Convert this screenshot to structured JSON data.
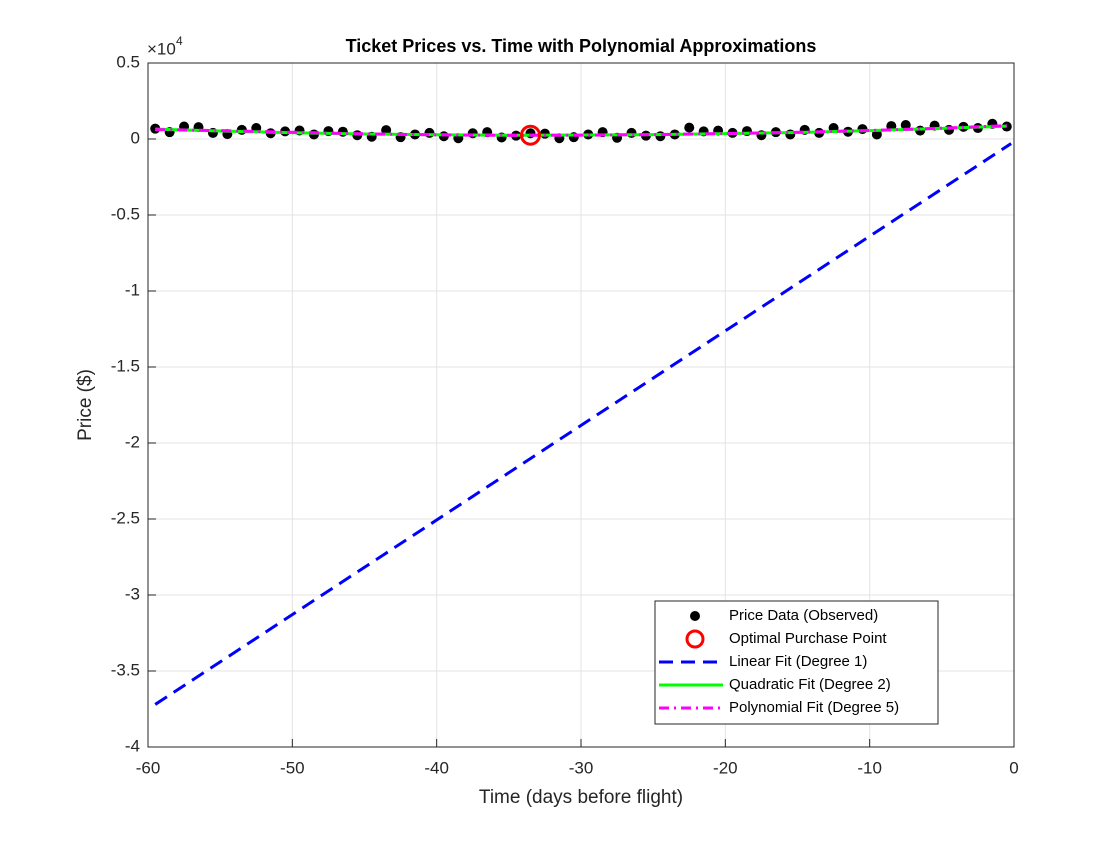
{
  "chart_data": {
    "type": "line",
    "title": "Ticket Prices vs. Time with Polynomial Approximations",
    "x_label": "Time (days before flight)",
    "y_label": "Price ($)",
    "y_multiplier": {
      "base": "×10",
      "exponent": "4"
    },
    "xlim": [
      -60,
      0
    ],
    "xticks": [
      -60,
      -50,
      -40,
      -30,
      -20,
      -10,
      0
    ],
    "ylim": [
      -4,
      0.5
    ],
    "yticks": [
      0.5,
      0,
      -0.5,
      -1,
      -1.5,
      -2,
      -2.5,
      -3,
      -3.5,
      -4
    ],
    "grid": true,
    "legend": "lower right",
    "series": [
      {
        "name": "Price Data (Observed)",
        "kind": "scatter",
        "color": "#000000",
        "x": [
          -59.5,
          -58.5,
          -57.5,
          -56.5,
          -55.5,
          -54.5,
          -53.5,
          -52.5,
          -51.5,
          -50.5,
          -49.5,
          -48.5,
          -47.5,
          -46.5,
          -45.5,
          -44.5,
          -43.5,
          -42.5,
          -41.5,
          -40.5,
          -39.5,
          -38.5,
          -37.5,
          -36.5,
          -35.5,
          -34.5,
          -33.5,
          -32.5,
          -31.5,
          -30.5,
          -29.5,
          -28.5,
          -27.5,
          -26.5,
          -25.5,
          -24.5,
          -23.5,
          -22.5,
          -21.5,
          -20.5,
          -19.5,
          -18.5,
          -17.5,
          -16.5,
          -15.5,
          -14.5,
          -13.5,
          -12.5,
          -11.5,
          -10.5,
          -9.5,
          -8.5,
          -7.5,
          -6.5,
          -5.5,
          -4.5,
          -3.5,
          -2.5,
          -1.5,
          -0.5
        ],
        "values": [
          0.068,
          0.045,
          0.082,
          0.078,
          0.04,
          0.032,
          0.06,
          0.072,
          0.038,
          0.05,
          0.056,
          0.03,
          0.052,
          0.048,
          0.025,
          0.015,
          0.058,
          0.012,
          0.03,
          0.04,
          0.018,
          0.005,
          0.038,
          0.045,
          0.01,
          0.022,
          0.038,
          0.035,
          0.005,
          0.012,
          0.03,
          0.045,
          0.008,
          0.04,
          0.022,
          0.018,
          0.03,
          0.075,
          0.05,
          0.055,
          0.04,
          0.052,
          0.025,
          0.045,
          0.03,
          0.06,
          0.04,
          0.072,
          0.048,
          0.065,
          0.03,
          0.085,
          0.092,
          0.055,
          0.088,
          0.06,
          0.08,
          0.072,
          0.1,
          0.082
        ]
      },
      {
        "name": "Optimal Purchase Point",
        "kind": "marker",
        "color": "#ff0000",
        "x": [
          -33.5
        ],
        "values": [
          0.025
        ]
      },
      {
        "name": "Linear Fit (Degree 1)",
        "kind": "line",
        "dash": "dash",
        "color": "#0000ff",
        "x": [
          -59.5,
          -0.2
        ],
        "values": [
          -3.72,
          -0.03
        ]
      },
      {
        "name": "Quadratic Fit (Degree 2)",
        "kind": "line",
        "dash": "solid",
        "color": "#00ff00",
        "x": [
          -59.5,
          -55,
          -50,
          -45,
          -40,
          -35,
          -30,
          -25,
          -20,
          -15,
          -10,
          -5,
          -0.5
        ],
        "values": [
          0.065,
          0.053,
          0.041,
          0.033,
          0.028,
          0.025,
          0.026,
          0.029,
          0.035,
          0.043,
          0.055,
          0.07,
          0.085
        ]
      },
      {
        "name": "Polynomial Fit (Degree 5)",
        "kind": "line",
        "dash": "dashdot",
        "color": "#ff00ff",
        "x": [
          -59.5,
          -55,
          -50,
          -45,
          -40,
          -35,
          -30,
          -25,
          -20,
          -15,
          -10,
          -5,
          -0.5
        ],
        "values": [
          0.062,
          0.055,
          0.044,
          0.034,
          0.027,
          0.024,
          0.025,
          0.029,
          0.036,
          0.044,
          0.056,
          0.071,
          0.088
        ]
      }
    ]
  }
}
